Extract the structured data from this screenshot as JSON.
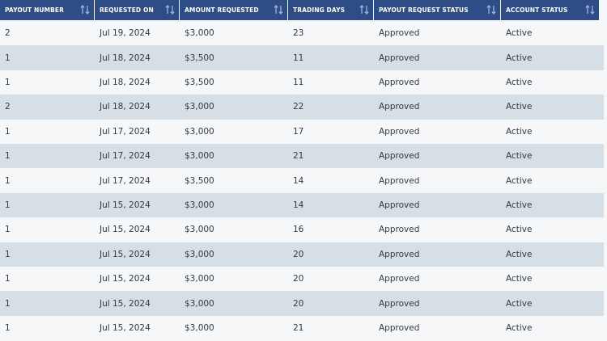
{
  "table": {
    "headers": [
      "PAYOUT NUMBER",
      "REQUESTED ON",
      "AMOUNT REQUESTED",
      "TRADING DAYS",
      "PAYOUT REQUEST STATUS",
      "ACCOUNT STATUS"
    ],
    "rows": [
      [
        "2",
        "Jul 19, 2024",
        "$3,000",
        "23",
        "Approved",
        "Active"
      ],
      [
        "1",
        "Jul 18, 2024",
        "$3,500",
        "11",
        "Approved",
        "Active"
      ],
      [
        "1",
        "Jul 18, 2024",
        "$3,500",
        "11",
        "Approved",
        "Active"
      ],
      [
        "2",
        "Jul 18, 2024",
        "$3,000",
        "22",
        "Approved",
        "Active"
      ],
      [
        "1",
        "Jul 17, 2024",
        "$3,000",
        "17",
        "Approved",
        "Active"
      ],
      [
        "1",
        "Jul 17, 2024",
        "$3,000",
        "21",
        "Approved",
        "Active"
      ],
      [
        "1",
        "Jul 17, 2024",
        "$3,500",
        "14",
        "Approved",
        "Active"
      ],
      [
        "1",
        "Jul 15, 2024",
        "$3,000",
        "14",
        "Approved",
        "Active"
      ],
      [
        "1",
        "Jul 15, 2024",
        "$3,000",
        "16",
        "Approved",
        "Active"
      ],
      [
        "1",
        "Jul 15, 2024",
        "$3,000",
        "20",
        "Approved",
        "Active"
      ],
      [
        "1",
        "Jul 15, 2024",
        "$3,000",
        "20",
        "Approved",
        "Active"
      ],
      [
        "1",
        "Jul 15, 2024",
        "$3,000",
        "20",
        "Approved",
        "Active"
      ],
      [
        "1",
        "Jul 15, 2024",
        "$3,000",
        "21",
        "Approved",
        "Active"
      ]
    ]
  }
}
